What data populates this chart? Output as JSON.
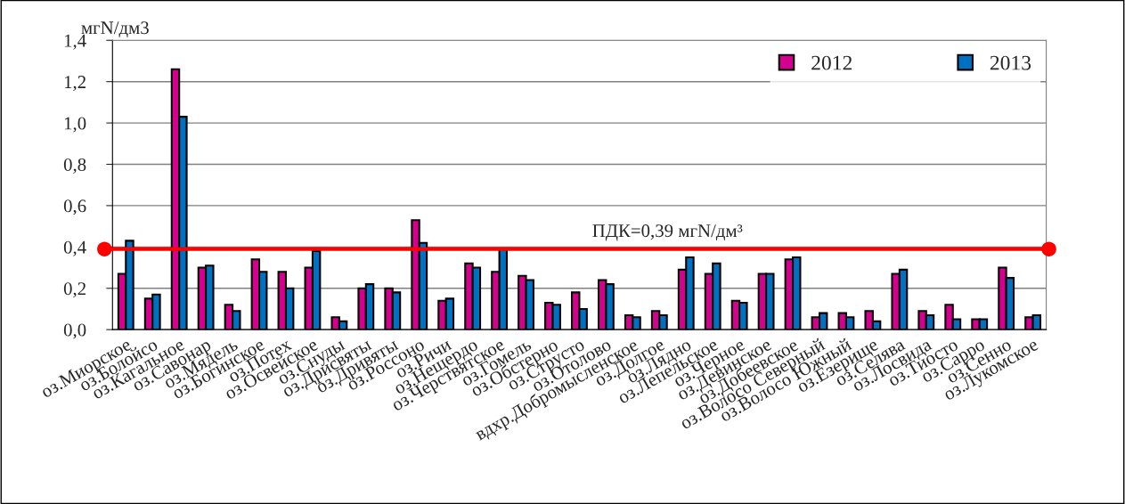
{
  "chart_data": {
    "type": "bar",
    "ylabel": "мгN/дм3",
    "categories": [
      "оз.Миорское",
      "оз.Болойсо",
      "оз.Кагальное",
      "оз.Савонар",
      "оз.Мядель",
      "оз.Богинское",
      "оз.Потех",
      "оз.Освейское",
      "оз.Снуды",
      "оз.Дрисвяты",
      "оз.Дривяты",
      "оз.Россоно",
      "оз.Ричи",
      "оз.Нещердо",
      "оз.Черствятское",
      "оз.Гомель",
      "оз.Обстерно",
      "оз.Струсто",
      "оз.Отолово",
      "вдхр.Добромысленское",
      "оз.Долгое",
      "оз.Лядно",
      "оз.Лепельское",
      "оз.Черное",
      "оз.Девинское",
      "оз.Добеевское",
      "оз.Волосо Северный",
      "оз.Волосо Южный",
      "оз.Езерище",
      "оз.Селява",
      "оз.Лосвида",
      "оз.Тиосто",
      "оз.Сарро",
      "оз.Сенно",
      "оз.Лукомское"
    ],
    "series": [
      {
        "name": "2012",
        "color": "#d6008f",
        "values": [
          0.27,
          0.15,
          1.26,
          0.3,
          0.12,
          0.34,
          0.28,
          0.3,
          0.06,
          0.2,
          0.2,
          0.53,
          0.14,
          0.32,
          0.28,
          0.26,
          0.13,
          0.18,
          0.24,
          0.07,
          0.09,
          0.29,
          0.27,
          0.14,
          0.27,
          0.34,
          0.06,
          0.08,
          0.09,
          0.27,
          0.09,
          0.12,
          0.05,
          0.3,
          0.06
        ]
      },
      {
        "name": "2013",
        "color": "#0070c0",
        "values": [
          0.43,
          0.17,
          1.03,
          0.31,
          0.09,
          0.28,
          0.2,
          0.38,
          0.04,
          0.22,
          0.18,
          0.42,
          0.15,
          0.3,
          0.39,
          0.24,
          0.12,
          0.1,
          0.22,
          0.06,
          0.07,
          0.35,
          0.32,
          0.13,
          0.27,
          0.35,
          0.08,
          0.06,
          0.04,
          0.29,
          0.07,
          0.05,
          0.05,
          0.25,
          0.07
        ]
      }
    ],
    "ylim": [
      0,
      1.4
    ],
    "yticks": [
      {
        "value": 0,
        "label": "0,0"
      },
      {
        "value": 0.2,
        "label": "0,2"
      },
      {
        "value": 0.4,
        "label": "0,4"
      },
      {
        "value": 0.6,
        "label": "0,6"
      },
      {
        "value": 0.8,
        "label": "0,8"
      },
      {
        "value": 1.0,
        "label": "1,0"
      },
      {
        "value": 1.2,
        "label": "1,2"
      },
      {
        "value": 1.4,
        "label": "1,4"
      }
    ],
    "ref_lines": [
      {
        "axis": "y",
        "value": 0.39,
        "label": "ПДК=0,39 мгN/дм³",
        "color": "#ff0000",
        "line_style": "solid"
      }
    ],
    "grid": "y",
    "legend": "top right"
  }
}
